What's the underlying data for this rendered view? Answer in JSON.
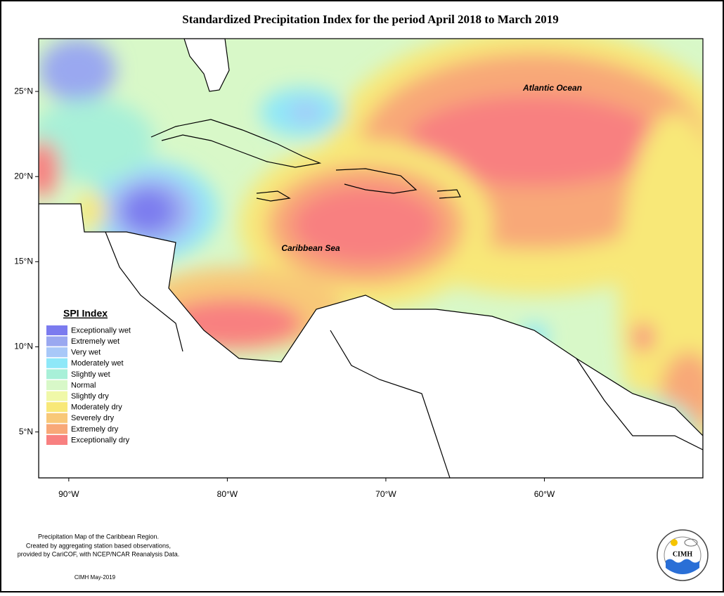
{
  "title": "Standardized Precipitation Index for the period April 2018 to March 2019",
  "map": {
    "lonlim": [
      -91.9,
      -50
    ],
    "latlim": [
      2.3,
      28.1
    ],
    "lat_ticks": [
      {
        "value": 25,
        "label": "25°N"
      },
      {
        "value": 20,
        "label": "20°N"
      },
      {
        "value": 15,
        "label": "15°N"
      },
      {
        "value": 10,
        "label": "10°N"
      },
      {
        "value": 5,
        "label": "5°N"
      }
    ],
    "lon_ticks": [
      {
        "value": -90,
        "label": "90°W"
      },
      {
        "value": -80,
        "label": "80°W"
      },
      {
        "value": -70,
        "label": "70°W"
      },
      {
        "value": -60,
        "label": "60°W"
      }
    ],
    "place_labels": [
      "Atlantic Ocean",
      "Caribbean Sea"
    ]
  },
  "legend": {
    "title": "SPI Index",
    "items": [
      {
        "label": "Exceptionally wet",
        "color": "#7b7bef"
      },
      {
        "label": "Extremely wet",
        "color": "#9aa8f0"
      },
      {
        "label": "Very wet",
        "color": "#a8c8f8"
      },
      {
        "label": "Moderately wet",
        "color": "#8ee8f8"
      },
      {
        "label": "Slightly wet",
        "color": "#a8f0d8"
      },
      {
        "label": "Normal",
        "color": "#d8f8c8"
      },
      {
        "label": "Slightly dry",
        "color": "#f0f8a8"
      },
      {
        "label": "Moderately dry",
        "color": "#f8e878"
      },
      {
        "label": "Severely dry",
        "color": "#f8c878"
      },
      {
        "label": "Extremely dry",
        "color": "#f8a878"
      },
      {
        "label": "Exceptionally dry",
        "color": "#f88080"
      }
    ]
  },
  "footer": {
    "notes": [
      "Precipitation Map of the Caribbean Region.",
      "Created by aggregating station based observations,",
      "provided by CariCOF, with NCEP/NCAR Reanalysis Data."
    ],
    "credit": "CIMH May-2019"
  },
  "logo": {
    "text": "CIMH"
  }
}
